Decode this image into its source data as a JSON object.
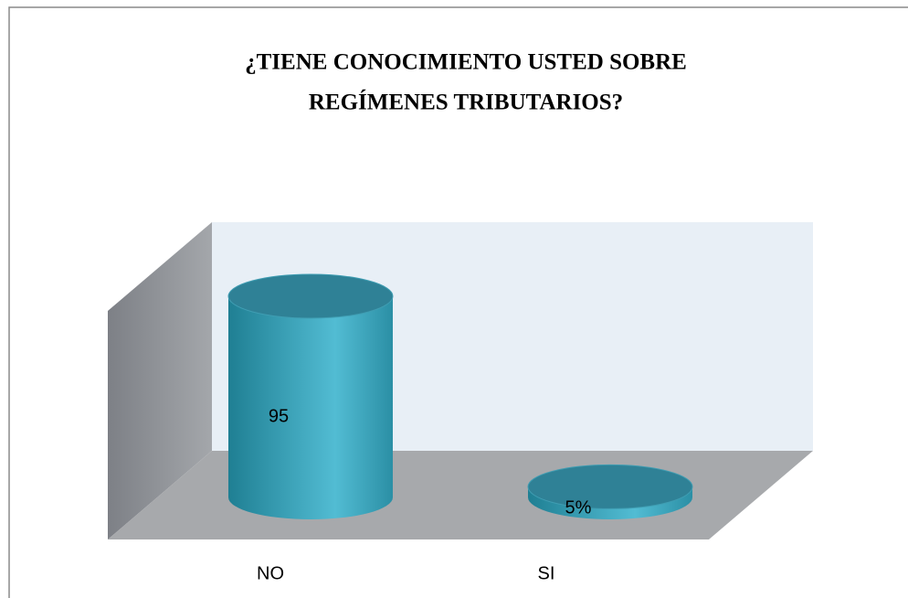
{
  "chart_data": {
    "type": "cylinder",
    "title": [
      "¿TIENE CONOCIMIENTO USTED SOBRE",
      "REGÍMENES TRIBUTARIOS?"
    ],
    "categories": [
      "NO",
      "SI"
    ],
    "values": [
      95,
      5
    ],
    "value_labels": [
      "95",
      "5%"
    ],
    "color": "#3aa6bd"
  }
}
